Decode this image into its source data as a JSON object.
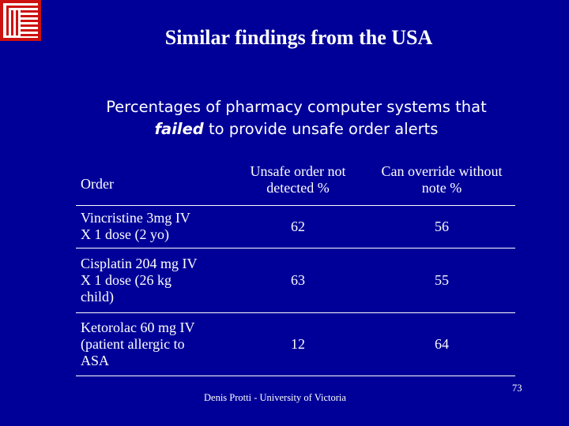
{
  "slide": {
    "title": "Similar findings from the USA",
    "subtitle_line1": "Percentages of pharmacy computer systems that",
    "subtitle_emphasis": "failed",
    "subtitle_rest": " to provide unsafe order alerts",
    "footer": "Denis Protti - University of Victoria",
    "page_number": "73",
    "logo_icon": "university-logo-icon",
    "colors": {
      "background": "#000099",
      "text": "#ffffff",
      "logo": "#cc1111"
    }
  },
  "table": {
    "headers": {
      "order": "Order",
      "unsafe_line1": "Unsafe order not",
      "unsafe_line2": "detected %",
      "override_line1": "Can override without",
      "override_line2": "note %"
    },
    "rows": [
      {
        "order_lines": [
          "Vincristine 3mg IV",
          "X 1 dose (2 yo)"
        ],
        "unsafe": "62",
        "override": "56"
      },
      {
        "order_lines": [
          "Cisplatin 204 mg IV",
          "X 1 dose (26 kg",
          "child)"
        ],
        "unsafe": "63",
        "override": "55"
      },
      {
        "order_lines": [
          "Ketorolac 60 mg IV",
          "(patient allergic to",
          "ASA"
        ],
        "unsafe": "12",
        "override": "64"
      }
    ]
  }
}
